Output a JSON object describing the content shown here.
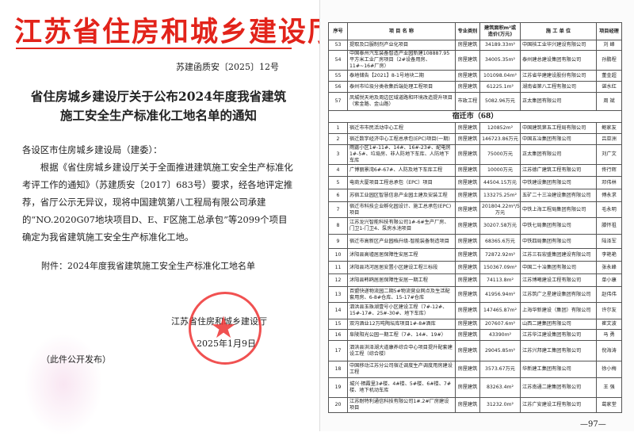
{
  "left_page": {
    "org_title": "江苏省住房和城乡建设厅",
    "doc_number": "苏建函质安〔2025〕12号",
    "heading_line1": "省住房城乡建设厅关于公布2024年度我省建筑",
    "heading_line2": "施工安全生产标准化工地名单的通知",
    "salutation": "各设区市住房城乡建设局（建委）：",
    "body": "根据《省住房城乡建设厅关于全面推进建筑施工安全生产标准化考评工作的通知》（苏建质安〔2017〕683号）要求，经各地评定推荐，省厅公示无异议，现将中国建筑第八工程局有限公司承建的“NO.2020G07地块项目D、E、F区施工总承包”等2099个项目确定为我省建筑施工安全生产标准化工地。",
    "attachment": "附件：2024年度我省建筑施工安全生产标准化工地名单",
    "signature": "江苏省住房和城乡建设厅",
    "date": "2025年1月9日",
    "publication_note": "（此件公开发布）",
    "seal_text": "江苏省住房和城乡建设厅"
  },
  "right_page": {
    "headers": [
      "序号",
      "项 目 名 称",
      "专业类别",
      "建筑面积m²或造价(万元)",
      "施 工 单 位",
      "项目经理"
    ],
    "rows_before": [
      [
        "53",
        "提取及口服制剂产业化项目",
        "房屋建筑",
        "34189.33m²",
        "中国核工业华兴建设有限公司",
        "刘 峰"
      ],
      [
        "54",
        "中国泰州汽车装备智造产业园新建108887.95平方米工业厂房项目（2#设备用房、11#~16#厂房）",
        "房屋建筑",
        "34005.35m²",
        "泰州建总建设集团有限公司",
        "孙鹏程"
      ],
      [
        "55",
        "泰地储告【2021】8-1号地块二期",
        "房屋建筑",
        "101098.04m²",
        "江苏省华建建设股份有限公司",
        "董金超"
      ],
      [
        "56",
        "泰州市垃圾分类收集后端处理工程项目",
        "房屋建筑",
        "61225.1m²",
        "湖南省第八工程有限公司",
        "谌水红"
      ],
      [
        "57",
        "凤城悦天地及周边区域道路和环境改造提升项目（紫金路、金山路）",
        "市政工程",
        "5082.96万元",
        "正太集团有限公司",
        "周 斌"
      ]
    ],
    "city_section": "宿迁市（68）",
    "rows": [
      [
        "1",
        "宿迁市市民活动中心工程",
        "房屋建筑",
        "120852m²",
        "中国建筑第五工程局有限公司",
        "鲍家友"
      ],
      [
        "2",
        "宿迁数字经济中心工程总承包(EPC)项目(一期)",
        "房屋建筑",
        "146723.86万元",
        "中国五冶集团有限公司",
        "吕亚洲"
      ],
      [
        "3",
        "雨露小区1#-11#、14#、16#-23#、配电房1#-5#、垃圾房、非人防地下车库、人防地下车库",
        "房屋建筑",
        "75000万元",
        "正太集团有限公司",
        "刘广文"
      ],
      [
        "4",
        "广博丽景湾6#-67#、人防及地下车库工程",
        "房屋建筑",
        "10000万元",
        "江苏德广建筑工程有限公司",
        "佟行辉"
      ],
      [
        "5",
        "电商大厦项目工程总承包（EPC）项目",
        "房屋建筑",
        "44504.15万元",
        "中铁建设集团有限公司",
        "邓伟林"
      ],
      [
        "6",
        "苏宿工业园区智慧信息产业园土建及安装工程",
        "房屋建筑",
        "133275.25m²",
        "五矿二十三冶建设集团有限公司",
        "傅永求"
      ],
      [
        "7",
        "宿迁市科技企业孵化园设计、施工总承包(EPC)项目",
        "房屋建筑",
        "201804.22m²/55702万元",
        "中铁上海工程局集团有限公司",
        "毛永明"
      ],
      [
        "8",
        "江苏龙兴智能科技有限公司1#-6#生产厂房、门卫1-门卫4、泵房水池项目",
        "房屋建筑",
        "30207.58万元",
        "中铁七局集团有限公司",
        "滕怀祖"
      ],
      [
        "9",
        "宿迁市高新区产业园档升级-智能装备制造项目",
        "房屋建筑",
        "68365.6万元",
        "中铁四局集团有限公司",
        "陆泽军"
      ],
      [
        "10",
        "沭阳县高墟居居保障性安居工程",
        "房屋建筑",
        "72872.92m²",
        "江苏三石宏盛集团建设有限公司",
        "李艳艳"
      ],
      [
        "11",
        "沭阳县鸿河居居安置小区建设工程三标段",
        "房屋建筑",
        "150367.09m²",
        "中国二十冶集团有限公司",
        "张永峰"
      ],
      [
        "12",
        "沭阳县韩鸥居居保障性安居一期工程",
        "房屋建筑",
        "74113.8m²",
        "江苏博曦建设工程有限公司",
        "单小康"
      ],
      [
        "13",
        "百盟快递物流园二期5#物流营业网点及生活配套用房、6-8#仓库、15-17#仓库",
        "房屋建筑",
        "41956.94m²",
        "江苏筑广之星建设集团有限公司",
        "赵伟伟"
      ],
      [
        "14",
        "泗洪县玉珠湖壹号小区建设工程（7#-12#、15#-17#、25#-30#、地下车库）",
        "房屋建筑",
        "147465.87m²",
        "上海华新建设（集团）有限公司",
        "许尔友"
      ],
      [
        "15",
        "双沟酒业12万吨陶坛库项目1#-8#酒库",
        "房屋建筑",
        "207607.6m²",
        "山西二建集团有限公司",
        "崔文波"
      ],
      [
        "16",
        "阜陵阳光公园一期工程（7#、14#、19#）",
        "房屋建筑",
        "43390m²",
        "江苏华江建设集团有限公司",
        "马 勇"
      ],
      [
        "17",
        "泗洪县洪泽湖大道康养综合中心项目提升配套建设工程（综合楼）",
        "房屋建筑",
        "29045.85m²",
        "江苏兴邦建工集团有限公司",
        "倪海涛"
      ],
      [
        "18",
        "中国移动江苏分公司宿迁调度生产调度用房建设工程",
        "房屋建筑",
        "3573.67万元",
        "华新建工集团有限公司",
        "徐小梅"
      ],
      [
        "19",
        "城兴·栖霞里3#楼、4#楼、5#楼、6#楼、7#楼、地下机动车库",
        "房屋建筑",
        "83263.4m²",
        "江苏南通二建集团有限公司",
        "王 强"
      ],
      [
        "20",
        "江苏耐特利通信科技有限公司1#.2#厂房建设项目",
        "房屋建筑",
        "31232.0m²",
        "江苏广安建设工程有限公司",
        "葛家堂"
      ]
    ],
    "page_number": "—97—"
  }
}
